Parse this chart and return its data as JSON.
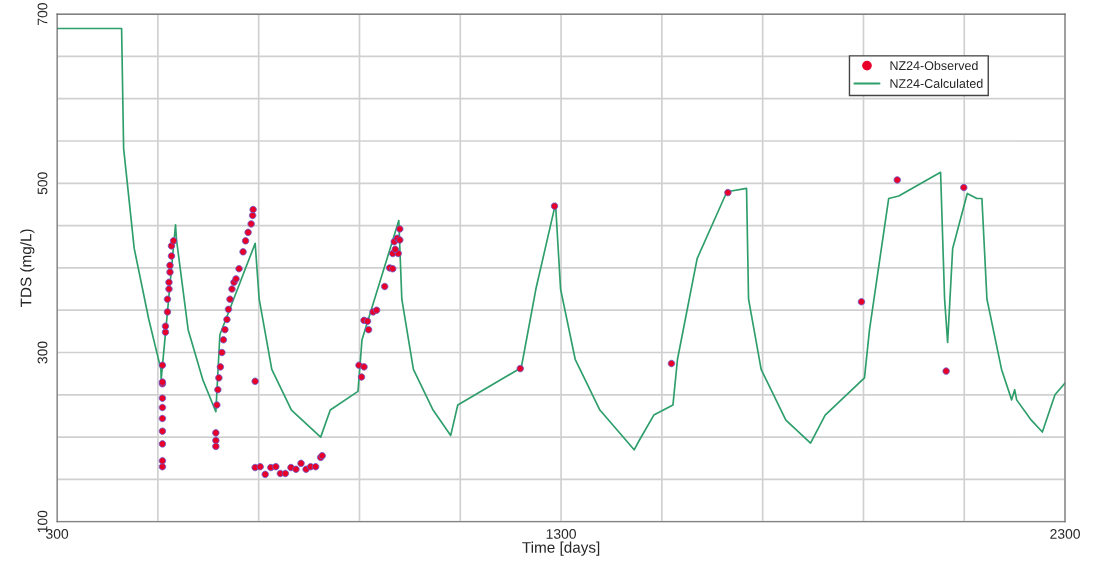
{
  "chart_data": {
    "type": "line",
    "xlabel": "Time [days]",
    "ylabel": "TDS (mg/L)",
    "xlim": [
      300,
      2300
    ],
    "ylim": [
      100,
      700
    ],
    "xticks": [
      300,
      {
        "value": 500,
        "label": null
      },
      {
        "value": 700,
        "label": null
      },
      {
        "value": 900,
        "label": null
      },
      {
        "value": 1100,
        "label": null
      },
      1300,
      {
        "value": 1500,
        "label": null
      },
      {
        "value": 1700,
        "label": null
      },
      {
        "value": 1900,
        "label": null
      },
      {
        "value": 2100,
        "label": null
      },
      2300
    ],
    "yticks": [
      100,
      {
        "value": 150,
        "label": null
      },
      {
        "value": 200,
        "label": null
      },
      {
        "value": 250,
        "label": null
      },
      300,
      {
        "value": 350,
        "label": null
      },
      {
        "value": 400,
        "label": null
      },
      {
        "value": 450,
        "label": null
      },
      500,
      {
        "value": 550,
        "label": null
      },
      {
        "value": 600,
        "label": null
      },
      {
        "value": 650,
        "label": null
      },
      700
    ],
    "grid": true,
    "legend": "top right",
    "series": [
      {
        "name": "NZ24-Observed",
        "type": "scatter",
        "marker": "circle",
        "color": "#e8002a",
        "x": [
          509,
          509,
          509,
          509,
          509,
          509,
          509,
          509,
          509,
          509,
          515,
          515,
          519,
          519,
          522,
          522,
          524,
          524,
          527,
          527,
          531,
          615,
          615,
          615,
          617,
          619,
          621,
          624,
          627,
          630,
          633,
          637,
          640,
          643,
          647,
          651,
          655,
          661,
          669,
          674,
          679,
          685,
          688,
          689,
          693,
          693,
          703,
          713,
          724,
          734,
          743,
          753,
          764,
          774,
          784,
          794,
          803,
          813,
          823,
          826,
          899,
          909,
          904,
          909,
          916,
          918,
          927,
          934,
          950,
          960,
          966,
          966,
          977,
          971,
          969,
          975,
          980,
          980,
          1219,
          1287,
          1519,
          1631,
          1896,
          1967,
          2064,
          2099
        ],
        "values": [
          165,
          172,
          192,
          207,
          222,
          235,
          246,
          263,
          265,
          285,
          324,
          331,
          348,
          363,
          375,
          383,
          395,
          403,
          414,
          426,
          432,
          205,
          196,
          189,
          238,
          256,
          270,
          283,
          300,
          315,
          327,
          339,
          351,
          363,
          375,
          383,
          387,
          399,
          419,
          432,
          442,
          452,
          462,
          469,
          266,
          164,
          165,
          156,
          164,
          165,
          157,
          157,
          164,
          162,
          169,
          162,
          165,
          165,
          176,
          178,
          285,
          283,
          271,
          338,
          337,
          327,
          348,
          350,
          378,
          400,
          399,
          417,
          417,
          422,
          431,
          435,
          433,
          446,
          281,
          473,
          287,
          489,
          360,
          504,
          278,
          495
        ]
      },
      {
        "name": "NZ24-Calculated",
        "marker": "none",
        "line_style": "solid",
        "color": "#2e9e6b",
        "x": [
          300,
          428,
          432,
          434,
          453,
          482,
          506,
          506.5,
          535,
          537,
          560,
          589,
          615,
          623,
          693,
          701,
          726,
          765,
          823,
          842,
          897,
          905,
          978,
          984,
          1007,
          1046,
          1081,
          1095,
          1221,
          1250,
          1289,
          1299,
          1328,
          1377,
          1445,
          1455,
          1484,
          1522,
          1531,
          1570,
          1629,
          1668,
          1672,
          1697,
          1746,
          1795,
          1824,
          1902,
          1912,
          1950,
          1970,
          2053,
          2061,
          2067,
          2077,
          2106,
          2125,
          2135,
          2145,
          2174,
          2194,
          2200,
          2204,
          2233,
          2255,
          2280,
          2300
        ],
        "values": [
          683,
          683,
          541,
          530,
          423,
          339,
          280,
          268,
          451,
          433,
          327,
          268,
          230,
          321,
          429,
          363,
          280,
          232,
          200,
          232,
          254,
          315,
          456,
          363,
          280,
          232,
          202,
          238,
          282,
          375,
          476,
          375,
          292,
          232,
          185,
          196,
          226,
          238,
          292,
          411,
          490,
          494,
          363,
          280,
          220,
          193,
          226,
          270,
          327,
          482,
          485,
          513,
          363,
          312,
          423,
          488,
          482,
          482,
          363,
          280,
          244,
          256,
          244,
          220,
          206,
          250,
          264
        ]
      }
    ]
  }
}
